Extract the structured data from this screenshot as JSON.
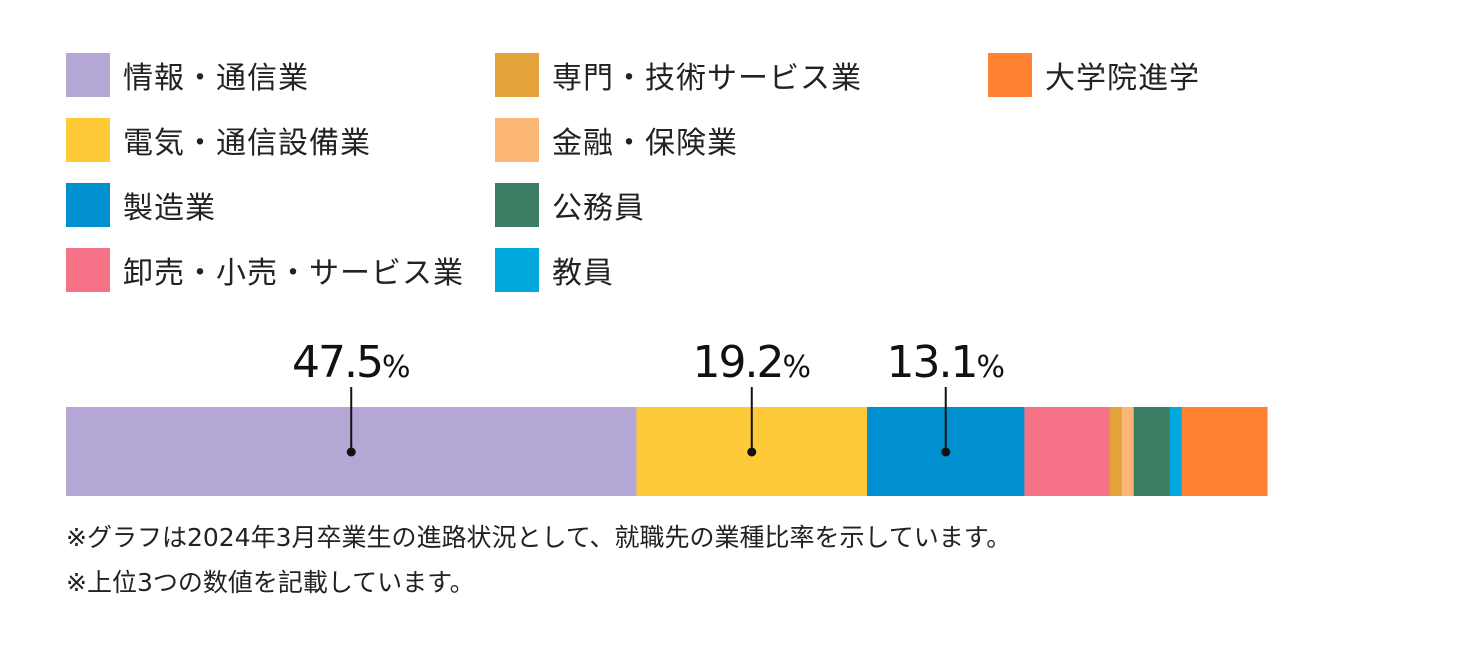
{
  "chart_data": {
    "type": "bar",
    "orientation": "horizontal-stacked-100",
    "series": [
      {
        "name": "情報・通信業",
        "value": 47.5,
        "color": "#b4a7d6",
        "label": "47.5",
        "unit": "%"
      },
      {
        "name": "電気・通信設備業",
        "value": 19.2,
        "color": "#ffca3a",
        "label": "19.2",
        "unit": "%"
      },
      {
        "name": "製造業",
        "value": 13.1,
        "color": "#0090d0",
        "label": "13.1",
        "unit": "%"
      },
      {
        "name": "卸売・小売・サービス業",
        "value": 7.1,
        "color": "#f57287",
        "label": null
      },
      {
        "name": "専門・技術サービス業",
        "value": 1.0,
        "color": "#e3a23a",
        "label": null
      },
      {
        "name": "金融・保険業",
        "value": 1.0,
        "color": "#fcb676",
        "label": null
      },
      {
        "name": "公務員",
        "value": 3.0,
        "color": "#3a7d62",
        "label": null
      },
      {
        "name": "教員",
        "value": 1.0,
        "color": "#00a8dd",
        "label": null
      },
      {
        "name": "大学院進学",
        "value": 7.1,
        "color": "#ff8131",
        "label": null
      }
    ],
    "legend_order": [
      "情報・通信業",
      "電気・通信設備業",
      "製造業",
      "卸売・小売・サービス業",
      "専門・技術サービス業",
      "金融・保険業",
      "公務員",
      "教員",
      "大学院進学"
    ],
    "legend_position": "top",
    "grid": false
  },
  "notes": [
    "※グラフは2024年3月卒業生の進路状況として、就職先の業種比率を示しています。",
    "※上位3つの数値を記載しています。"
  ]
}
